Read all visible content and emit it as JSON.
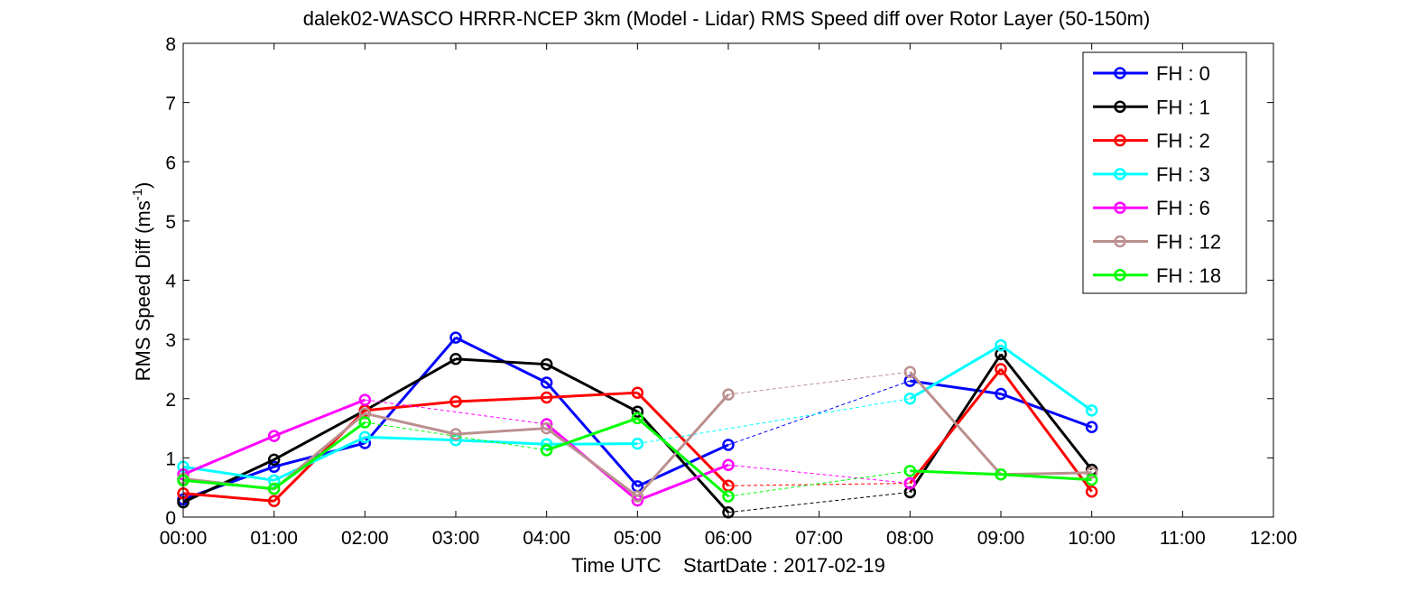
{
  "chart_data": {
    "type": "line",
    "title": "dalek02-WASCO HRRR-NCEP 3km (Model - Lidar) RMS Speed diff over Rotor Layer (50-150m)",
    "xlabel": "Time UTC    StartDate : 2017-02-19",
    "ylabel": "RMS Speed Diff (ms",
    "ylabel_sup": "-1",
    "ylabel_end": ")",
    "xlim": [
      0,
      12
    ],
    "ylim": [
      0,
      8
    ],
    "x_ticks": [
      0,
      1,
      2,
      3,
      4,
      5,
      6,
      7,
      8,
      9,
      10,
      11,
      12
    ],
    "x_tick_labels": [
      "00:00",
      "01:00",
      "02:00",
      "03:00",
      "04:00",
      "05:00",
      "06:00",
      "07:00",
      "08:00",
      "09:00",
      "10:00",
      "11:00",
      "12:00"
    ],
    "y_ticks": [
      0,
      1,
      2,
      3,
      4,
      5,
      6,
      7,
      8
    ],
    "y_tick_labels": [
      "0",
      "1",
      "2",
      "3",
      "4",
      "5",
      "6",
      "7",
      "8"
    ],
    "grid": false,
    "legend_position": "top-right",
    "x": [
      0,
      1,
      2,
      3,
      4,
      5,
      6,
      8,
      9,
      10
    ],
    "series": [
      {
        "name": "FH : 0",
        "color": "#0000ff",
        "values": [
          0.3,
          0.85,
          1.25,
          3.03,
          2.27,
          0.52,
          1.22,
          2.3,
          2.08,
          1.52
        ]
      },
      {
        "name": "FH : 1",
        "color": "#000000",
        "values": [
          0.25,
          0.97,
          1.8,
          2.67,
          2.58,
          1.78,
          0.08,
          0.42,
          2.75,
          0.8
        ]
      },
      {
        "name": "FH : 2",
        "color": "#ff0000",
        "values": [
          0.4,
          0.27,
          1.8,
          1.95,
          2.02,
          2.1,
          0.53,
          0.57,
          2.5,
          0.43
        ]
      },
      {
        "name": "FH : 3",
        "color": "#00ffff",
        "values": [
          0.85,
          0.62,
          1.35,
          1.3,
          1.23,
          1.24,
          null,
          2.0,
          2.9,
          1.8
        ]
      },
      {
        "name": "FH : 6",
        "color": "#ff00ff",
        "values": [
          0.72,
          1.37,
          1.98,
          null,
          1.57,
          0.28,
          0.88,
          0.57,
          null,
          null
        ]
      },
      {
        "name": "FH : 12",
        "color": "#bc8f8f",
        "values": [
          0.65,
          0.47,
          1.75,
          1.4,
          1.5,
          0.35,
          2.07,
          2.45,
          0.72,
          0.75
        ]
      },
      {
        "name": "FH : 18",
        "color": "#00ff00",
        "values": [
          0.62,
          0.48,
          1.6,
          null,
          1.13,
          1.67,
          0.35,
          0.78,
          0.72,
          0.63
        ]
      }
    ]
  }
}
